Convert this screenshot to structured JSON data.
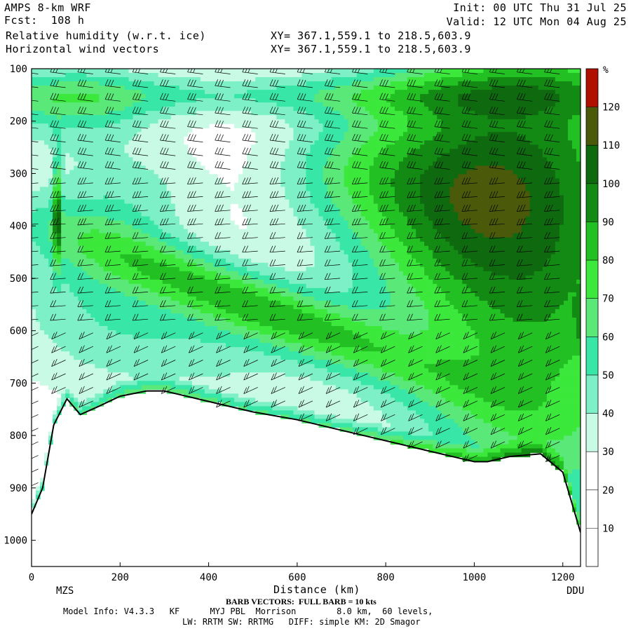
{
  "header": {
    "model_name": "AMPS 8-km WRF",
    "forecast": "Fcst:  108 h",
    "field1": "Relative humidity (w.r.t. ice)",
    "field2": "Horizontal wind vectors",
    "init": "Init: 00 UTC Thu 31 Jul 25",
    "valid": "Valid: 12 UTC Mon 04 Aug 25",
    "xy1": "XY= 367.1,559.1 to 218.5,603.9",
    "xy2": "XY= 367.1,559.1 to 218.5,603.9"
  },
  "footer": {
    "barb_note": "BARB VECTORS:  FULL BARB = 10 kts",
    "model_info": "Model Info: V4.3.3   KF      MYJ PBL  Morrison        8.0 km,  60 levels,",
    "model_info2": "LW: RRTM SW: RRTMG   DIFF: simple KM: 2D Smagor"
  },
  "chart_data": {
    "type": "heatmap",
    "title": "Relative humidity (w.r.t. ice)",
    "xlabel": "Distance (km)",
    "ylabel": "",
    "x_range": [
      0,
      1240
    ],
    "y_range_hpa": [
      1050,
      100
    ],
    "y_inverted": true,
    "x_ticks": [
      0,
      200,
      400,
      600,
      800,
      1000,
      1200
    ],
    "y_ticks": [
      100,
      200,
      300,
      400,
      500,
      600,
      700,
      800,
      900,
      1000
    ],
    "x_endpoint_labels": {
      "left": "MZS",
      "right": "DDU"
    },
    "colorbar": {
      "unit": "%",
      "tick_labels": [
        10,
        20,
        30,
        40,
        50,
        60,
        70,
        80,
        90,
        100,
        110,
        120
      ],
      "bands": [
        {
          "from": 0,
          "to": 30,
          "color": "#ffffff"
        },
        {
          "from": 30,
          "to": 40,
          "color": "#c8fae6"
        },
        {
          "from": 40,
          "to": 50,
          "color": "#7ef0c8"
        },
        {
          "from": 50,
          "to": 60,
          "color": "#38e6a8"
        },
        {
          "from": 60,
          "to": 70,
          "color": "#5ae878"
        },
        {
          "from": 70,
          "to": 80,
          "color": "#3be83b"
        },
        {
          "from": 80,
          "to": 90,
          "color": "#22c022"
        },
        {
          "from": 90,
          "to": 100,
          "color": "#138a13"
        },
        {
          "from": 100,
          "to": 110,
          "color": "#0f6a0f"
        },
        {
          "from": 110,
          "to": 120,
          "color": "#4a5a0a"
        },
        {
          "from": 120,
          "to": 130,
          "color": "#b01000"
        },
        {
          "from": 130,
          "to": 140,
          "color": "#ff1000"
        }
      ]
    },
    "terrain_hpa": [
      [
        0,
        950
      ],
      [
        25,
        900
      ],
      [
        50,
        780
      ],
      [
        80,
        730
      ],
      [
        110,
        760
      ],
      [
        150,
        745
      ],
      [
        200,
        725
      ],
      [
        260,
        715
      ],
      [
        300,
        715
      ],
      [
        400,
        735
      ],
      [
        500,
        755
      ],
      [
        600,
        770
      ],
      [
        700,
        790
      ],
      [
        800,
        810
      ],
      [
        900,
        830
      ],
      [
        1000,
        850
      ],
      [
        1030,
        850
      ],
      [
        1080,
        840
      ],
      [
        1150,
        835
      ],
      [
        1200,
        870
      ],
      [
        1240,
        985
      ]
    ],
    "grid": false
  }
}
